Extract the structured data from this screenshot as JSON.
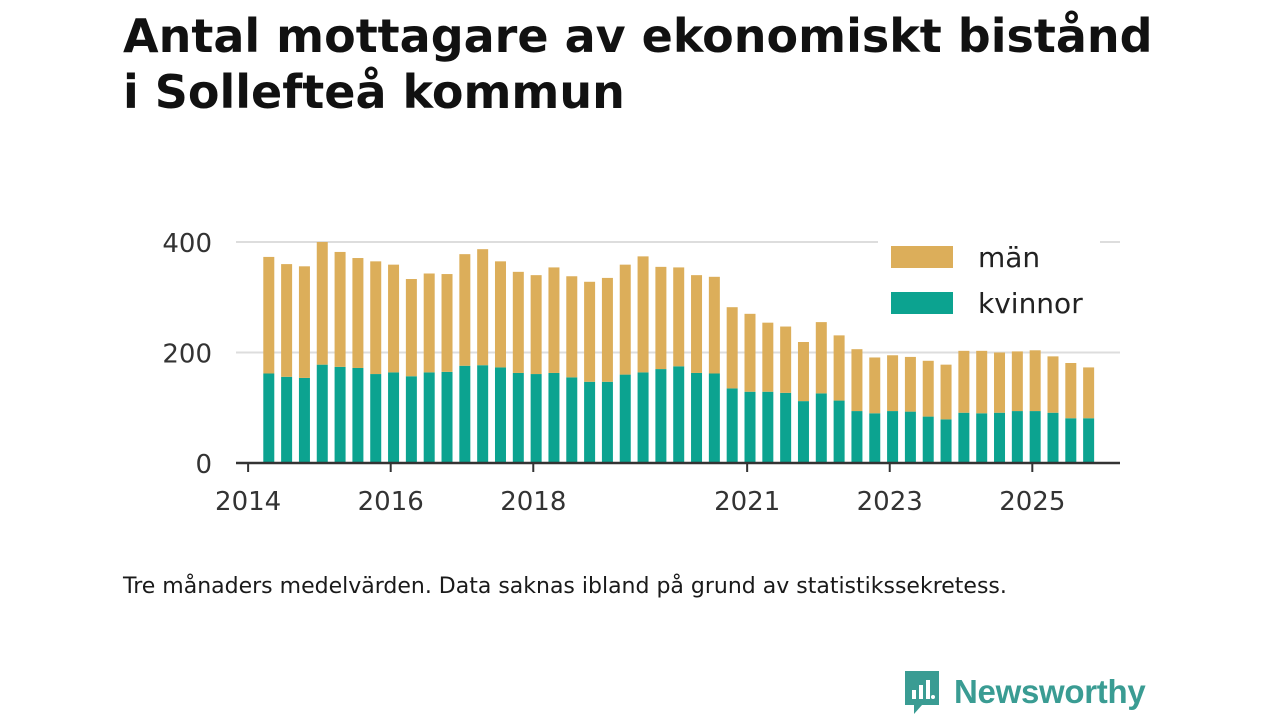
{
  "header": {
    "title_line1": "Antal mottagare av ekonomiskt bistånd",
    "title_line2": "i Sollefteå kommun"
  },
  "chart_data": {
    "type": "bar",
    "stacked": true,
    "title": "Antal mottagare av ekonomiskt bistånd i Sollefteå kommun",
    "xlabel": "",
    "ylabel": "",
    "ylim": [
      0,
      400
    ],
    "yticks": [
      0,
      200,
      400
    ],
    "xticks": [
      {
        "label": "2014",
        "x": 2014.0
      },
      {
        "label": "2016",
        "x": 2016.0
      },
      {
        "label": "2018",
        "x": 2018.0
      },
      {
        "label": "2021",
        "x": 2021.0
      },
      {
        "label": "2023",
        "x": 2023.0
      },
      {
        "label": "2025",
        "x": 2025.0
      }
    ],
    "grid": true,
    "legend_position": "top-right",
    "colors": {
      "kvinnor": "#0ca390",
      "män": "#dcae5a"
    },
    "x": [
      2014.29,
      2014.54,
      2014.79,
      2015.04,
      2015.29,
      2015.54,
      2015.79,
      2016.04,
      2016.29,
      2016.54,
      2016.79,
      2017.04,
      2017.29,
      2017.54,
      2017.79,
      2018.04,
      2018.29,
      2018.54,
      2018.79,
      2019.04,
      2019.29,
      2019.54,
      2019.79,
      2020.04,
      2020.29,
      2020.54,
      2020.79,
      2021.04,
      2021.29,
      2021.54,
      2021.79,
      2022.04,
      2022.29,
      2022.54,
      2022.79,
      2023.04,
      2023.29,
      2023.54,
      2023.79,
      2024.04,
      2024.29,
      2024.54,
      2024.79,
      2025.04,
      2025.29,
      2025.54,
      2025.79
    ],
    "series": [
      {
        "name": "kvinnor",
        "values": [
          162,
          156,
          154,
          178,
          174,
          172,
          161,
          164,
          157,
          164,
          165,
          176,
          177,
          173,
          163,
          161,
          163,
          155,
          147,
          147,
          160,
          164,
          170,
          175,
          163,
          162,
          135,
          129,
          129,
          127,
          112,
          126,
          113,
          94,
          90,
          94,
          93,
          84,
          79,
          91,
          90,
          91,
          94,
          94,
          91,
          81,
          81
        ]
      },
      {
        "name": "män",
        "values": [
          211,
          204,
          202,
          222,
          208,
          199,
          204,
          195,
          176,
          179,
          177,
          202,
          210,
          192,
          183,
          179,
          191,
          183,
          181,
          188,
          199,
          210,
          185,
          179,
          177,
          175,
          147,
          141,
          125,
          120,
          107,
          129,
          118,
          112,
          101,
          101,
          99,
          101,
          99,
          112,
          113,
          109,
          108,
          110,
          102,
          100,
          92
        ]
      }
    ]
  },
  "legend": {
    "items": [
      "män",
      "kvinnor"
    ]
  },
  "footer": {
    "note": "Tre månaders medelvärden. Data saknas ibland på grund av statistikssekretess.",
    "brand": "Newsworthy"
  }
}
